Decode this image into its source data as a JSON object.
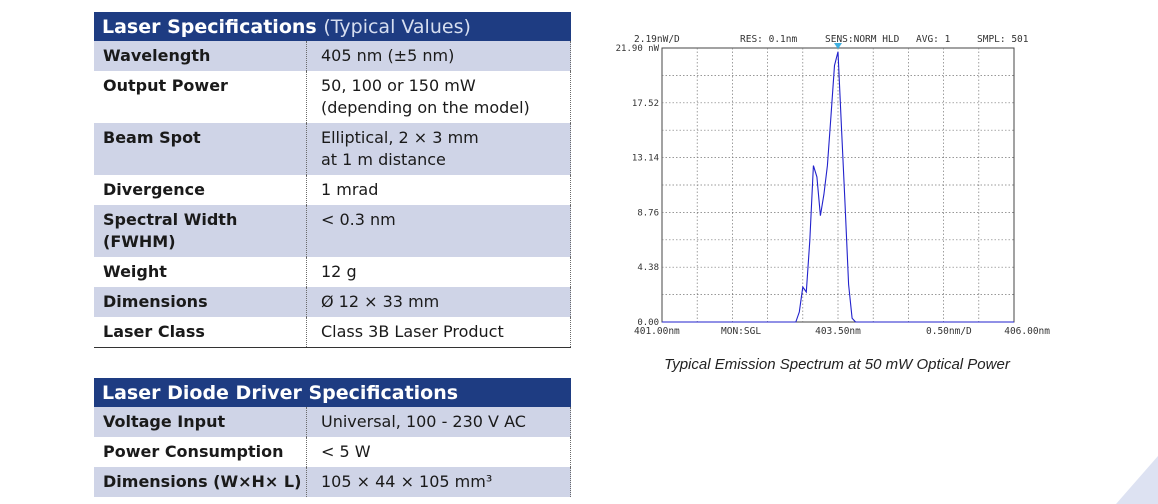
{
  "laser": {
    "title": "Laser Specifications",
    "title_suffix": "(Typical Values)",
    "rows": [
      {
        "label": "Wavelength",
        "lines": [
          "405 nm (±5 nm)"
        ]
      },
      {
        "label": "Output Power",
        "lines": [
          "50, 100 or 150 mW",
          "(depending on the model)"
        ]
      },
      {
        "label": "Beam Spot",
        "lines": [
          "Elliptical, 2 × 3 mm",
          "at 1 m distance"
        ]
      },
      {
        "label": "Divergence",
        "lines": [
          "1 mrad"
        ]
      },
      {
        "label": "Spectral Width (FWHM)",
        "lines": [
          "< 0.3 nm"
        ]
      },
      {
        "label": "Weight",
        "lines": [
          "12 g"
        ]
      },
      {
        "label": "Dimensions",
        "lines": [
          "Ø 12 × 33 mm"
        ]
      },
      {
        "label": "Laser Class",
        "lines": [
          "Class 3B Laser Product"
        ]
      }
    ]
  },
  "driver": {
    "title": "Laser Diode Driver Specifications",
    "rows": [
      {
        "label": "Voltage Input",
        "lines": [
          "Universal, 100 - 230 V AC"
        ]
      },
      {
        "label": "Power Consumption",
        "lines": [
          "< 5 W"
        ]
      },
      {
        "label": "Dimensions (W×H× L)",
        "lines": [
          "105 × 44 × 105 mm³"
        ]
      }
    ]
  },
  "spectrum": {
    "caption": "Typical Emission Spectrum at 50 mW Optical Power",
    "header": {
      "scale": "2.19nW/D",
      "res": "RES: 0.1nm",
      "sens": "SENS:NORM HLD",
      "avg": "AVG:   1",
      "smpl": "SMPL: 501"
    },
    "footer": {
      "x_start": "401.00nm",
      "mon": "MON:SGL",
      "x_center": "403.50nm",
      "x_div": "0.50nm/D",
      "x_end": "406.00nm"
    }
  },
  "chart_data": {
    "type": "line",
    "title": "",
    "xlabel": "",
    "ylabel": "",
    "xlim": [
      401.0,
      406.0
    ],
    "ylim": [
      0.0,
      21.9
    ],
    "y_ticks": [
      "21.90 nW",
      "17.52",
      "13.14",
      "8.76",
      "4.38",
      "0.00"
    ],
    "y_tick_values": [
      21.9,
      17.52,
      13.14,
      8.76,
      4.38,
      0.0
    ],
    "grid": true,
    "line_color": "#2222cc",
    "marker_color": "#3fb0e0",
    "peak_marker_x": 403.5,
    "x": [
      401.0,
      402.9,
      402.95,
      403.0,
      403.05,
      403.1,
      403.15,
      403.2,
      403.25,
      403.3,
      403.35,
      403.4,
      403.45,
      403.5,
      403.55,
      403.6,
      403.65,
      403.7,
      403.75,
      406.0
    ],
    "y": [
      0.0,
      0.0,
      0.8,
      2.8,
      2.4,
      6.5,
      12.5,
      11.6,
      8.5,
      10.2,
      12.5,
      16.5,
      20.5,
      21.6,
      15.5,
      9.5,
      3.0,
      0.3,
      0.0,
      0.0
    ]
  }
}
